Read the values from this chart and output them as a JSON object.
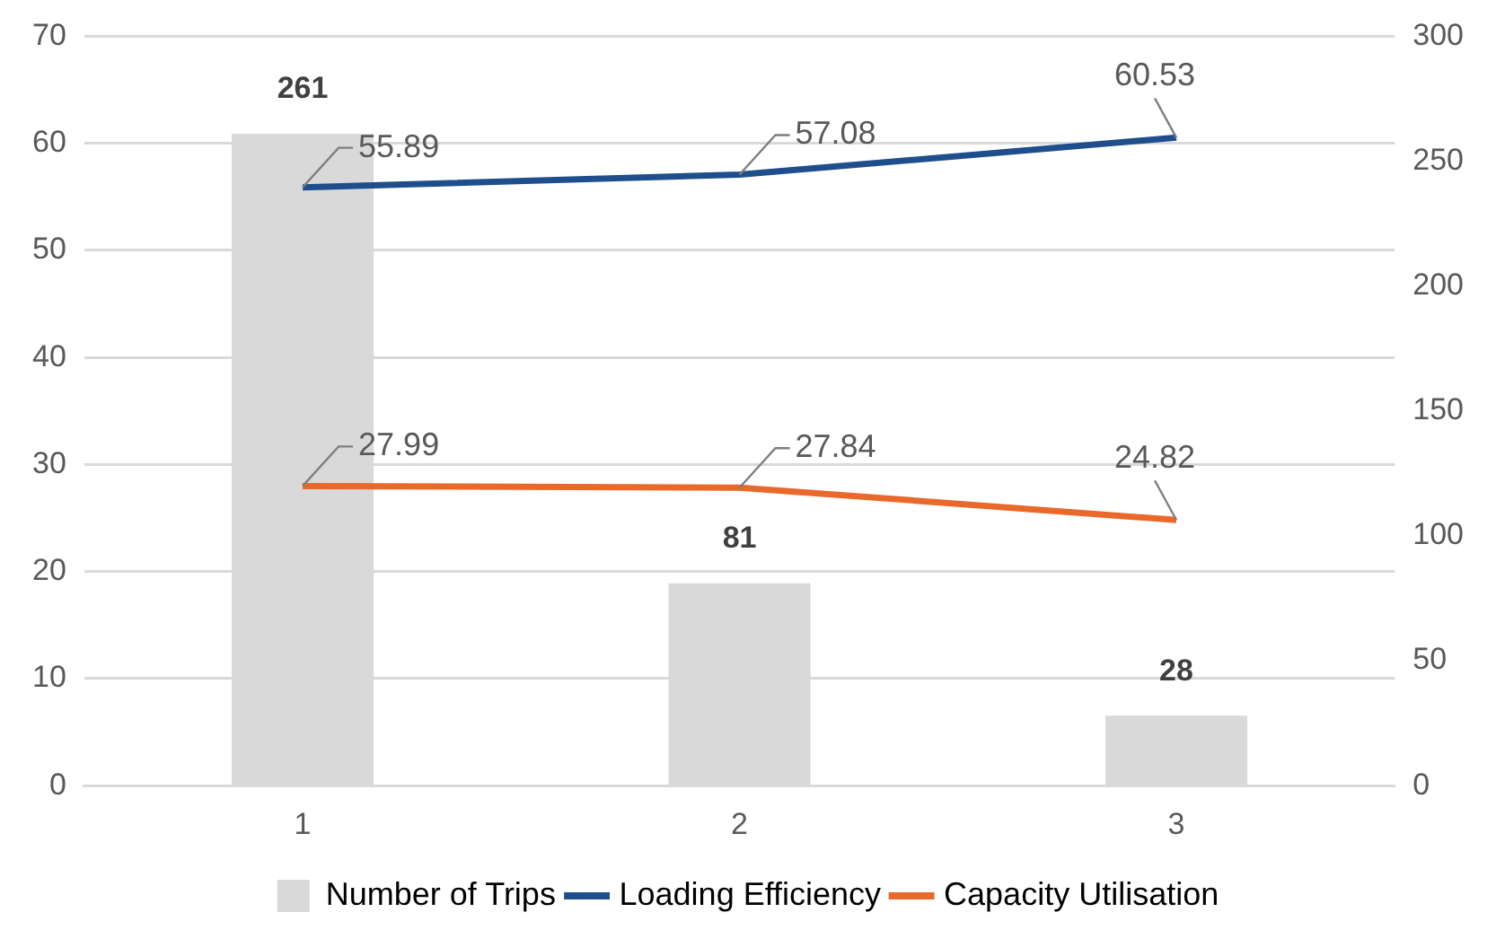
{
  "chart_data": {
    "type": "bar",
    "categories": [
      "1",
      "2",
      "3"
    ],
    "series": [
      {
        "name": "Number of Trips",
        "axis": "y2",
        "color": "#d9d9d9",
        "values": [
          261,
          81,
          28
        ]
      },
      {
        "name": "Loading Efficiency",
        "type": "line",
        "color": "#1f4e8c",
        "values": [
          55.89,
          57.08,
          60.53
        ]
      },
      {
        "name": "Capacity Utilisation",
        "type": "line",
        "color": "#e8692a",
        "values": [
          27.99,
          27.84,
          24.82
        ]
      }
    ],
    "ylim": [
      0,
      70
    ],
    "yticks": [
      0,
      10,
      20,
      30,
      40,
      50,
      60,
      70
    ],
    "y2lim": [
      0,
      300
    ],
    "y2ticks": [
      0,
      50,
      100,
      150,
      200,
      250,
      300
    ],
    "grid": "y",
    "legend": "bottom",
    "marker": "none",
    "line_style": "solid",
    "data_labels": true
  }
}
